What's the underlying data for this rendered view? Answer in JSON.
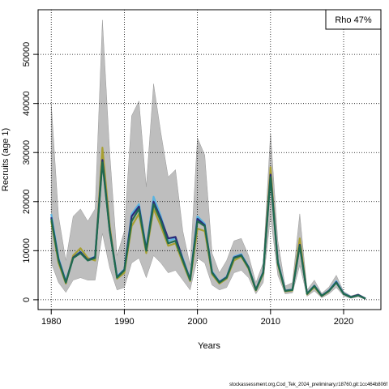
{
  "chart_data": {
    "type": "line",
    "xlabel": "Years",
    "ylabel": "Recruits (age 1)",
    "legend_text": "Rho 47%",
    "legend_position": "top-right",
    "footer": "stockassessment.org,Cod_Tek_2024_preliminary,r18760,git:1cc464b806f",
    "grid": true,
    "x": [
      1980,
      1981,
      1982,
      1983,
      1984,
      1985,
      1986,
      1987,
      1988,
      1989,
      1990,
      1991,
      1992,
      1993,
      1994,
      1995,
      1996,
      1997,
      1998,
      1999,
      2000,
      2001,
      2002,
      2003,
      2004,
      2005,
      2006,
      2007,
      2008,
      2009,
      2010,
      2011,
      2012,
      2013,
      2014,
      2015,
      2016,
      2017,
      2018,
      2019,
      2020,
      2021,
      2022,
      2023
    ],
    "xlim": [
      1978.2,
      2025.1
    ],
    "xticks": [
      1980,
      1990,
      2000,
      2010,
      2020
    ],
    "ylim": [
      -2000,
      59100
    ],
    "yticks": [
      0,
      10000,
      20000,
      30000,
      40000,
      50000
    ],
    "band": {
      "color": "#bebebe",
      "upper": [
        40000,
        17000,
        8000,
        17000,
        18500,
        16000,
        18500,
        57000,
        30000,
        9000,
        14000,
        37500,
        40500,
        23000,
        44000,
        34000,
        25000,
        26500,
        14000,
        7000,
        33000,
        29500,
        9500,
        5500,
        8000,
        12000,
        12500,
        9000,
        3500,
        7500,
        34000,
        12000,
        2800,
        3500,
        17500,
        2000,
        4000,
        1300,
        2600,
        5000,
        1700,
        800,
        1200,
        400
      ],
      "lower": [
        7500,
        3500,
        1500,
        4000,
        4500,
        4000,
        4000,
        13500,
        6500,
        2000,
        2500,
        7500,
        8500,
        4500,
        9000,
        7500,
        5500,
        6000,
        4000,
        2000,
        8500,
        7500,
        3000,
        2000,
        2500,
        5500,
        6000,
        4500,
        1200,
        3500,
        17000,
        5000,
        1200,
        1400,
        7000,
        700,
        1800,
        400,
        1200,
        2500,
        800,
        300,
        600,
        50
      ]
    },
    "series": [
      {
        "color": "#5ab4e0",
        "values": [
          17500,
          8500,
          3800,
          8800,
          9800,
          8200,
          8800,
          29000,
          14500,
          4800,
          6200,
          17500,
          19500,
          10500,
          21000,
          17000,
          12000,
          12500,
          8500,
          4200,
          17000,
          15500,
          5800,
          3700,
          4700,
          8800,
          9300,
          6700,
          2100,
          5700,
          26000,
          7800,
          1900,
          2100,
          11500,
          1300,
          2900,
          850,
          1900,
          3800,
          1300,
          600,
          null,
          null
        ]
      },
      {
        "color": "#a8a032",
        "values": [
          16000,
          7500,
          3300,
          9000,
          10500,
          8500,
          8000,
          31000,
          15000,
          4300,
          5500,
          15000,
          17500,
          9500,
          18500,
          15000,
          11000,
          11500,
          7500,
          3800,
          14500,
          14000,
          5200,
          3300,
          4300,
          8000,
          8800,
          6300,
          1900,
          5300,
          27000,
          7200,
          1700,
          1900,
          12500,
          1100,
          2600,
          750,
          1700,
          null,
          null,
          null,
          null,
          null
        ]
      },
      {
        "color": "#2b2b7a",
        "values": [
          16800,
          8200,
          3600,
          8600,
          9700,
          8100,
          8700,
          28500,
          14200,
          4600,
          6100,
          17000,
          19000,
          10200,
          20000,
          16500,
          12500,
          12800,
          8200,
          4100,
          16500,
          15200,
          5600,
          3600,
          4600,
          8600,
          9100,
          6600,
          2050,
          5600,
          25500,
          7600,
          1850,
          2050,
          11200,
          1250,
          2850,
          820,
          1850,
          3600,
          1250,
          550,
          1000,
          250
        ]
      },
      {
        "color": "#1f6b4f",
        "values": [
          16500,
          8000,
          3500,
          8500,
          9500,
          8000,
          8500,
          28000,
          14000,
          4500,
          6000,
          16000,
          18500,
          10000,
          19500,
          16000,
          11500,
          12000,
          8000,
          4000,
          16000,
          15000,
          5500,
          3500,
          4500,
          8500,
          9000,
          6500,
          2000,
          5500,
          25000,
          7500,
          1800,
          2000,
          11000,
          1200,
          2800,
          800,
          1800,
          3500,
          1200,
          500,
          900,
          200
        ]
      }
    ]
  }
}
